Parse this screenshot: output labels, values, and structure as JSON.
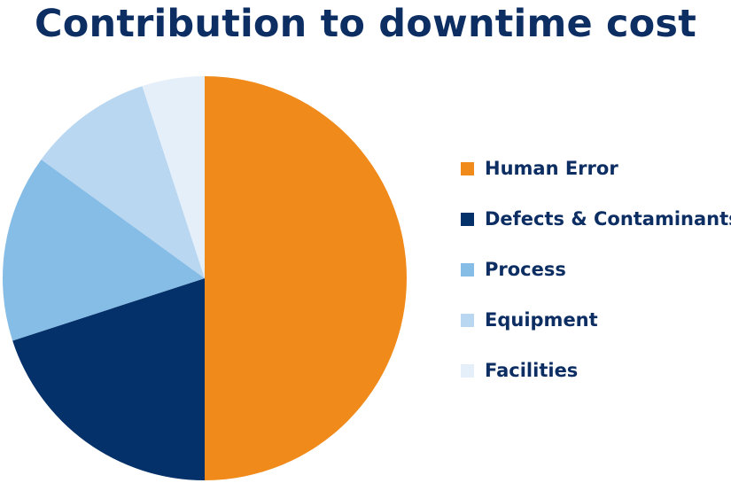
{
  "chart_data": {
    "type": "pie",
    "title": "Contribution to downtime cost",
    "slices": [
      {
        "label": "Human Error",
        "value": 50,
        "color": "#f08a1a"
      },
      {
        "label": "Defects & Contaminants",
        "value": 20,
        "color": "#04316a"
      },
      {
        "label": "Process",
        "value": 15,
        "color": "#86bde6"
      },
      {
        "label": "Equipment",
        "value": 10,
        "color": "#b9d7f1"
      },
      {
        "label": "Facilities",
        "value": 5,
        "color": "#e4effa"
      }
    ],
    "start_angle": "12 o'clock",
    "direction": "clockwise",
    "legend": "right"
  }
}
